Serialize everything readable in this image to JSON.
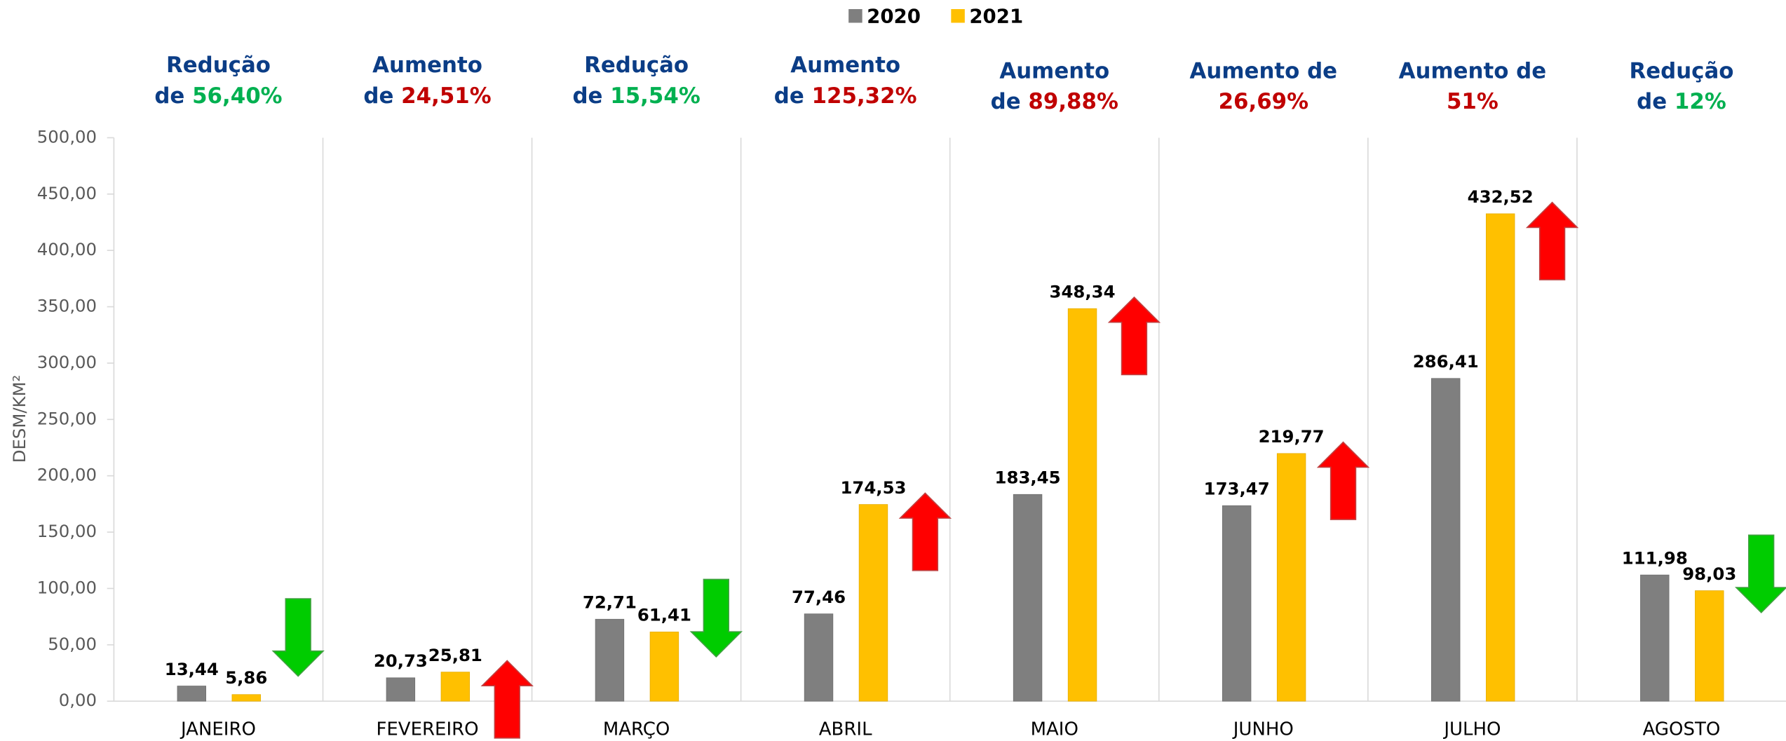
{
  "chart_data": {
    "type": "bar",
    "y_label": "DESM/KM²",
    "categories": [
      "JANEIRO",
      "FEVEREIRO",
      "MARÇO",
      "ABRIL",
      "MAIO",
      "JUNHO",
      "JULHO",
      "AGOSTO"
    ],
    "series": [
      {
        "name": "2020",
        "color": "#7f7f7f",
        "values": [
          13.44,
          20.73,
          72.71,
          77.46,
          183.45,
          173.47,
          286.41,
          111.98
        ],
        "value_labels": [
          "13,44",
          "20,73",
          "72,71",
          "77,46",
          "183,45",
          "173,47",
          "286,41",
          "111,98"
        ]
      },
      {
        "name": "2021",
        "color": "#ffc000",
        "values": [
          5.86,
          25.81,
          61.41,
          174.53,
          348.34,
          219.77,
          432.52,
          98.03
        ],
        "value_labels": [
          "5,86",
          "25,81",
          "61,41",
          "174,53",
          "348,34",
          "219,77",
          "432,52",
          "98,03"
        ]
      }
    ],
    "annotations": [
      {
        "lines": [
          "Redução",
          "de"
        ],
        "percent": "56,40%"
      },
      {
        "lines": [
          "Aumento",
          "de"
        ],
        "percent": "24,51%"
      },
      {
        "lines": [
          "Redução",
          "de"
        ],
        "percent": "15,54%"
      },
      {
        "lines": [
          "Aumento",
          "de"
        ],
        "percent": "125,32%"
      },
      {
        "lines": [
          "Aumento",
          "de"
        ],
        "percent": "89,88%"
      },
      {
        "lines": [
          "Aumento de"
        ],
        "percent": "26,69%"
      },
      {
        "lines": [
          "Aumento de"
        ],
        "percent": "51%"
      },
      {
        "lines": [
          "Redução",
          "de"
        ],
        "percent": "12%"
      }
    ],
    "ylim": [
      0,
      500
    ],
    "yticks": [
      {
        "value": 0,
        "label": "0,00"
      },
      {
        "value": 50,
        "label": "50,00"
      },
      {
        "value": 100,
        "label": "100,00"
      },
      {
        "value": 150,
        "label": "150,00"
      },
      {
        "value": 200,
        "label": "200,00"
      },
      {
        "value": 250,
        "label": "250,00"
      },
      {
        "value": 300,
        "label": "300,00"
      },
      {
        "value": 350,
        "label": "350,00"
      },
      {
        "value": 400,
        "label": "400,00"
      },
      {
        "value": 450,
        "label": "450,00"
      },
      {
        "value": 500,
        "label": "500,00"
      }
    ],
    "legend": "top"
  }
}
